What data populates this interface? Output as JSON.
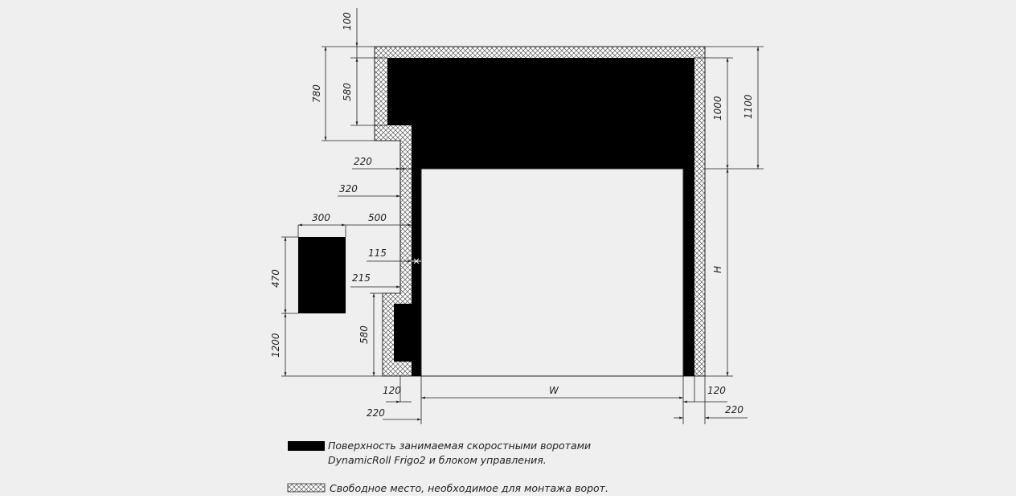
{
  "colors": {
    "background": "#efefef",
    "fill": "#000000",
    "line": "#222222",
    "opening": "#efefef",
    "hatch_bg": "#ffffff"
  },
  "dimensions": {
    "d100": "100",
    "d780": "780",
    "d580_top": "580",
    "d1000": "1000",
    "d1100": "1100",
    "d220_top": "220",
    "d320": "320",
    "d300": "300",
    "d500": "500",
    "d470": "470",
    "d115": "115",
    "d215": "215",
    "d580_bottom": "580",
    "d1200": "1200",
    "h": "H",
    "w": "W",
    "d120_left": "120",
    "d220_left": "220",
    "d120_right": "120",
    "d220_right": "220"
  },
  "legend": {
    "solid_line1": "Поверхность занимаемая скоростными воротами",
    "solid_line2": "DynamicRoll Frigo2 и блоком управления.",
    "hatched": "Свободное место, необходимое для монтажа ворот."
  }
}
